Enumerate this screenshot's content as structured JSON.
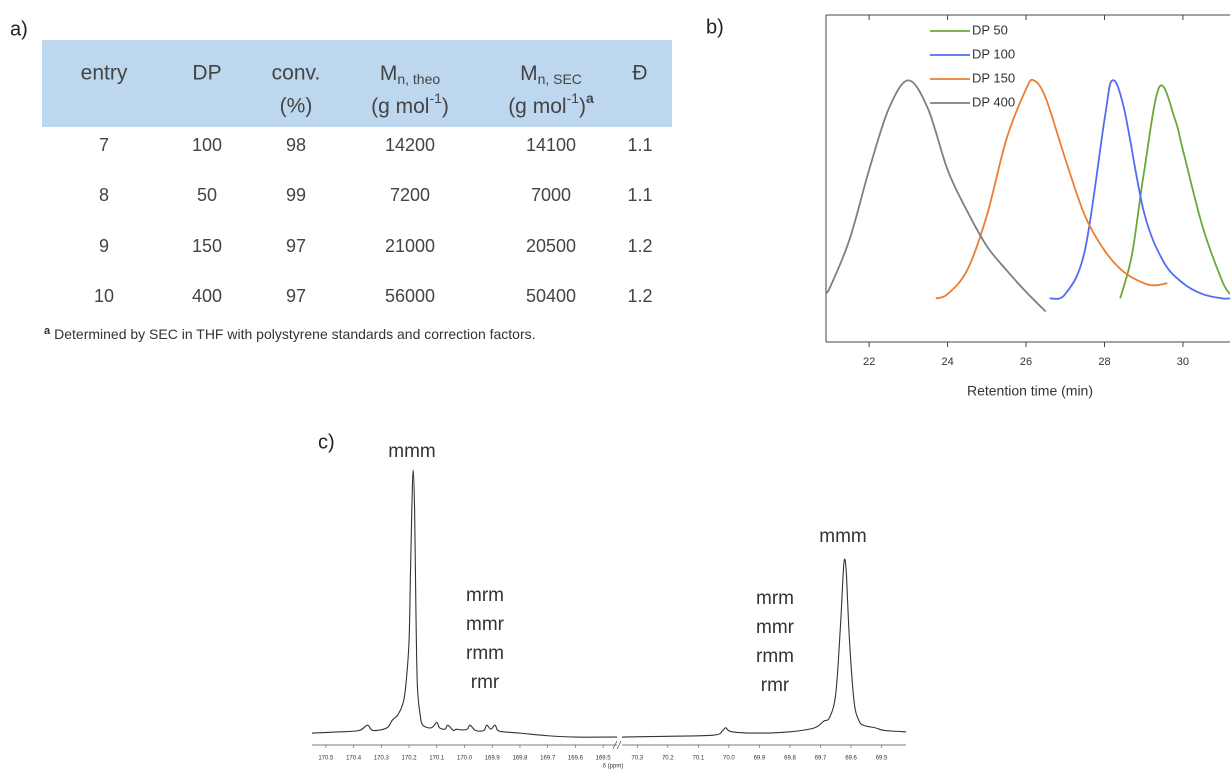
{
  "panel_labels": [
    "a)",
    "b)",
    "c)"
  ],
  "table": {
    "headers": {
      "entry": "entry",
      "dp": "DP",
      "conv": "conv.",
      "conv_unit": "(%)",
      "mn_theo": "M",
      "mn_theo_sub": "n, theo",
      "mn_theo_unit": "(g mol",
      "mn_theo_sup": "-1",
      "mn_theo_close": ")",
      "mn_sec": "M",
      "mn_sec_sub": "n, SEC",
      "mn_sec_unit": "(g mol",
      "mn_sec_sup": "-1",
      "mn_sec_close": ")",
      "mn_sec_note": "a",
      "dispersity": "Đ"
    },
    "rows": [
      [
        7,
        100,
        98,
        14200,
        14100,
        1.1
      ],
      [
        8,
        50,
        99,
        7200,
        7000,
        1.1
      ],
      [
        9,
        150,
        97,
        21000,
        20500,
        1.2
      ],
      [
        10,
        400,
        97,
        56000,
        50400,
        1.2
      ]
    ],
    "footnote_mark": "a",
    "footnote": "Determined by SEC in THF with polystyrene standards and correction factors."
  },
  "chart_data": [
    {
      "type": "line",
      "xlabel": "Retention time (min)",
      "xlim": [
        20.9,
        31.2
      ],
      "xticks": [
        22,
        24,
        26,
        28,
        30
      ],
      "ylim": [
        -0.2,
        1.3
      ],
      "grid": false,
      "legend": "upper left",
      "series": [
        {
          "name": "DP 50",
          "color": "#6aa935",
          "x": [
            28.4,
            28.7,
            29,
            29.4,
            29.8,
            30,
            30.5,
            31,
            31.2
          ],
          "values": [
            0,
            0.2,
            0.57,
            0.97,
            0.82,
            0.68,
            0.33,
            0.08,
            0.02
          ]
        },
        {
          "name": "DP 100",
          "color": "#4f6ef0",
          "x": [
            26.6,
            27,
            27.5,
            28,
            28.2,
            28.5,
            29,
            29.5,
            30,
            30.5,
            31,
            31.2
          ],
          "values": [
            0,
            0.02,
            0.22,
            0.82,
            1.0,
            0.87,
            0.4,
            0.17,
            0.07,
            0.02,
            0,
            0
          ]
        },
        {
          "name": "DP 150",
          "color": "#ed7d31",
          "x": [
            23.7,
            24,
            24.5,
            25,
            25.5,
            26,
            26.2,
            26.5,
            27,
            27.5,
            28,
            28.5,
            29,
            29.3,
            29.6
          ],
          "values": [
            0,
            0.02,
            0.13,
            0.38,
            0.73,
            0.96,
            1.0,
            0.92,
            0.64,
            0.38,
            0.22,
            0.12,
            0.07,
            0.06,
            0.07
          ]
        },
        {
          "name": "DP 400",
          "color": "#7f7f7f",
          "x": [
            20.9,
            21,
            21.5,
            22,
            22.5,
            23,
            23.5,
            24,
            24.5,
            25,
            25.5,
            26,
            26.5
          ],
          "values": [
            0.03,
            0.05,
            0.27,
            0.59,
            0.87,
            1.0,
            0.87,
            0.59,
            0.4,
            0.24,
            0.13,
            0.03,
            -0.06
          ]
        }
      ]
    },
    {
      "type": "spectrum",
      "xlabel": "δ (ppm)",
      "ylim": [
        -0.03,
        1.05
      ],
      "color": "#333333",
      "grid": false,
      "segments": [
        {
          "xlim": [
            170.55,
            169.45
          ],
          "xticks": [
            170.5,
            170.4,
            170.3,
            170.2,
            170.1,
            {
              "value": 170,
              "label": "170.0"
            },
            169.9,
            169.8,
            169.7,
            169.6,
            169.5
          ],
          "x": [
            170.55,
            170.45,
            170.38,
            170.35,
            170.33,
            170.28,
            170.26,
            170.24,
            170.22,
            170.21,
            170.2,
            170.195,
            170.19,
            170.185,
            170.18,
            170.175,
            170.17,
            170.16,
            170.15,
            170.12,
            170.1,
            170.09,
            170.07,
            170.06,
            170.04,
            170.03,
            170.01,
            169.99,
            169.98,
            169.96,
            169.93,
            169.92,
            169.905,
            169.89,
            169.88,
            169.86,
            169.8,
            169.7,
            169.6,
            169.45
          ],
          "values": [
            0,
            0.005,
            0.01,
            0.03,
            0.01,
            0.02,
            0.05,
            0.07,
            0.12,
            0.2,
            0.35,
            0.6,
            0.85,
            1.0,
            0.85,
            0.45,
            0.18,
            0.07,
            0.03,
            0.02,
            0.04,
            0.02,
            0.015,
            0.03,
            0.01,
            0.015,
            0.012,
            0.015,
            0.03,
            0.01,
            0.01,
            0.03,
            0.015,
            0.03,
            0.01,
            0.005,
            0,
            -0.01,
            -0.015,
            -0.015
          ]
        },
        {
          "xlim": [
            70.35,
            69.42
          ],
          "xticks": [
            70.3,
            70.2,
            70.1,
            {
              "value": 70,
              "label": "70.0"
            },
            69.9,
            69.8,
            69.7,
            69.6,
            69.5
          ],
          "x": [
            70.35,
            70.2,
            70.05,
            70.02,
            70.01,
            69.99,
            69.9,
            69.8,
            69.72,
            69.69,
            69.67,
            69.65,
            69.635,
            69.625,
            69.62,
            69.615,
            69.605,
            69.59,
            69.575,
            69.56,
            69.52,
            69.49,
            69.42
          ],
          "values": [
            -0.015,
            -0.012,
            -0.008,
            0.01,
            0.02,
            0.005,
            0,
            0.005,
            0.02,
            0.045,
            0.06,
            0.15,
            0.4,
            0.62,
            0.66,
            0.6,
            0.35,
            0.12,
            0.05,
            0.03,
            0.02,
            0.01,
            0.005
          ]
        }
      ],
      "annotations": [
        [
          "mmm"
        ],
        [
          "mrm",
          "mmr",
          "rmm",
          "rmr"
        ],
        [
          "mrm",
          "mmr",
          "rmm",
          "rmr"
        ],
        [
          "mmm"
        ]
      ]
    }
  ]
}
